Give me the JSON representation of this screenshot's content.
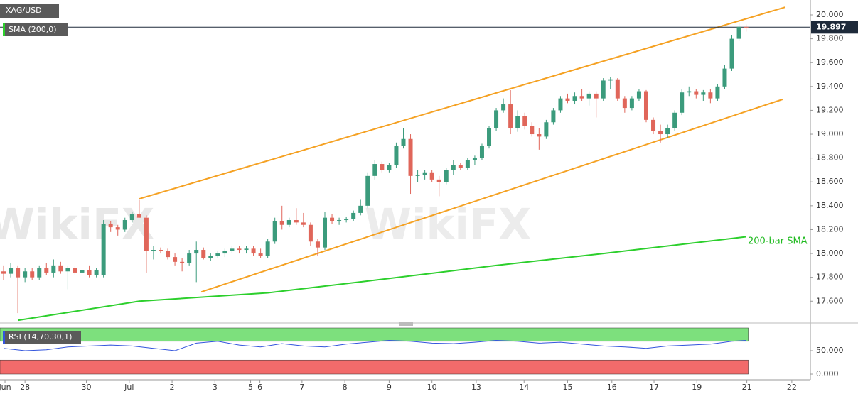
{
  "chart_data": {
    "type": "candlestick",
    "symbol": "XAG/USD",
    "indicator": "SMA (200,0)",
    "annotation": "200-bar SMA",
    "watermark": "WikiFX",
    "up_color": "#3b9b7c",
    "down_color": "#e0665a",
    "sma_color": "#2ccf2c",
    "trend_color": "#f5a122",
    "rsi_color": "#3355dd",
    "xlim": [
      -0.5,
      113
    ],
    "ylim": [
      17.435,
      20.125
    ],
    "yticks": [
      {
        "value": 20.0,
        "label": "20.000"
      },
      {
        "value": 19.8,
        "label": "19.800"
      },
      {
        "value": 19.6,
        "label": "19.600"
      },
      {
        "value": 19.4,
        "label": "19.400"
      },
      {
        "value": 19.2,
        "label": "19.200"
      },
      {
        "value": 19.0,
        "label": "19.000"
      },
      {
        "value": 18.8,
        "label": "18.800"
      },
      {
        "value": 18.6,
        "label": "18.600"
      },
      {
        "value": 18.4,
        "label": "18.400"
      },
      {
        "value": 18.2,
        "label": "18.200"
      },
      {
        "value": 18.0,
        "label": "18.000"
      },
      {
        "value": 17.8,
        "label": "17.800"
      },
      {
        "value": 17.6,
        "label": "17.600"
      }
    ],
    "xticks": [
      {
        "value": 0.2,
        "label": "Jun"
      },
      {
        "value": 3,
        "label": "28"
      },
      {
        "value": 11.6,
        "label": "30"
      },
      {
        "value": 17.6,
        "label": "Jul"
      },
      {
        "value": 23.6,
        "label": "2"
      },
      {
        "value": 29.6,
        "label": "3"
      },
      {
        "value": 34.6,
        "label": "5"
      },
      {
        "value": 35.9,
        "label": "6"
      },
      {
        "value": 41.8,
        "label": "7"
      },
      {
        "value": 47.8,
        "label": "8"
      },
      {
        "value": 54,
        "label": "9"
      },
      {
        "value": 60,
        "label": "10"
      },
      {
        "value": 66.2,
        "label": "13"
      },
      {
        "value": 72.9,
        "label": "14"
      },
      {
        "value": 79,
        "label": "15"
      },
      {
        "value": 85.2,
        "label": "16"
      },
      {
        "value": 91.1,
        "label": "17"
      },
      {
        "value": 97.1,
        "label": "19"
      },
      {
        "value": 104.1,
        "label": "21"
      },
      {
        "value": 110.4,
        "label": "22"
      }
    ],
    "last": {
      "value": 19.897,
      "label": "19.897"
    },
    "x": [
      0,
      1,
      2,
      3,
      4,
      5,
      6,
      7,
      8,
      9,
      10,
      11,
      12,
      13,
      14,
      15,
      16,
      17,
      18,
      19,
      20,
      21,
      22,
      23,
      24,
      25,
      26,
      27,
      28,
      29,
      30,
      31,
      32,
      33,
      34,
      35,
      36,
      37,
      38,
      39,
      40,
      41,
      42,
      43,
      44,
      45,
      46,
      47,
      48,
      49,
      50,
      51,
      52,
      53,
      54,
      55,
      56,
      57,
      58,
      59,
      60,
      61,
      62,
      63,
      64,
      65,
      66,
      67,
      68,
      69,
      70,
      71,
      72,
      73,
      74,
      75,
      76,
      77,
      78,
      79,
      80,
      81,
      82,
      83,
      84,
      85,
      86,
      87,
      88,
      89,
      90,
      91,
      92,
      93,
      94,
      95,
      96,
      97,
      98,
      99,
      100,
      101,
      102,
      103,
      104
    ],
    "candles": [
      [
        17.85,
        17.9,
        17.78,
        17.83
      ],
      [
        17.83,
        17.92,
        17.8,
        17.88
      ],
      [
        17.88,
        17.9,
        17.5,
        17.8
      ],
      [
        17.8,
        17.88,
        17.76,
        17.85
      ],
      [
        17.85,
        17.88,
        17.78,
        17.8
      ],
      [
        17.8,
        17.9,
        17.78,
        17.88
      ],
      [
        17.88,
        17.92,
        17.82,
        17.84
      ],
      [
        17.84,
        17.95,
        17.8,
        17.9
      ],
      [
        17.9,
        17.93,
        17.83,
        17.85
      ],
      [
        17.85,
        17.9,
        17.7,
        17.88
      ],
      [
        17.88,
        17.9,
        17.82,
        17.84
      ],
      [
        17.84,
        17.9,
        17.8,
        17.86
      ],
      [
        17.86,
        17.9,
        17.8,
        17.82
      ],
      [
        17.82,
        17.88,
        17.8,
        17.86
      ],
      [
        17.82,
        18.28,
        17.8,
        18.25
      ],
      [
        18.25,
        18.27,
        18.18,
        18.22
      ],
      [
        18.22,
        18.24,
        18.15,
        18.2
      ],
      [
        18.2,
        18.3,
        18.18,
        18.28
      ],
      [
        18.28,
        18.35,
        18.26,
        18.33
      ],
      [
        18.33,
        18.45,
        18.3,
        18.3
      ],
      [
        18.3,
        18.32,
        17.84,
        18.02
      ],
      [
        18.02,
        18.06,
        17.95,
        18.03
      ],
      [
        18.03,
        18.05,
        18.0,
        18.02
      ],
      [
        18.02,
        18.04,
        17.95,
        17.97
      ],
      [
        17.97,
        18.0,
        17.9,
        17.93
      ],
      [
        17.93,
        17.96,
        17.85,
        17.92
      ],
      [
        17.92,
        18.03,
        17.9,
        18.0
      ],
      [
        18.0,
        18.1,
        17.76,
        18.03
      ],
      [
        18.03,
        18.05,
        17.95,
        17.96
      ],
      [
        17.96,
        18.0,
        17.94,
        17.98
      ],
      [
        17.98,
        18.02,
        17.96,
        18.0
      ],
      [
        18.0,
        18.04,
        17.97,
        18.02
      ],
      [
        18.02,
        18.06,
        18.0,
        18.04
      ],
      [
        18.04,
        18.06,
        18.0,
        18.03
      ],
      [
        18.03,
        18.06,
        18.0,
        18.04
      ],
      [
        18.04,
        18.06,
        17.98,
        18.0
      ],
      [
        18.0,
        18.04,
        17.96,
        17.98
      ],
      [
        17.98,
        18.12,
        17.96,
        18.1
      ],
      [
        18.1,
        18.3,
        18.08,
        18.27
      ],
      [
        18.27,
        18.4,
        18.2,
        18.24
      ],
      [
        18.24,
        18.3,
        18.22,
        18.28
      ],
      [
        18.28,
        18.38,
        18.24,
        18.26
      ],
      [
        18.26,
        18.34,
        18.22,
        18.24
      ],
      [
        18.24,
        18.26,
        18.06,
        18.1
      ],
      [
        18.1,
        18.12,
        17.98,
        18.05
      ],
      [
        18.05,
        18.35,
        18.03,
        18.3
      ],
      [
        18.3,
        18.33,
        18.25,
        18.27
      ],
      [
        18.27,
        18.3,
        18.24,
        18.28
      ],
      [
        18.28,
        18.31,
        18.26,
        18.29
      ],
      [
        18.29,
        18.36,
        18.27,
        18.34
      ],
      [
        18.34,
        18.45,
        18.32,
        18.4
      ],
      [
        18.4,
        18.68,
        18.38,
        18.65
      ],
      [
        18.65,
        18.78,
        18.62,
        18.75
      ],
      [
        18.75,
        18.77,
        18.68,
        18.7
      ],
      [
        18.7,
        18.76,
        18.68,
        18.74
      ],
      [
        18.74,
        18.93,
        18.72,
        18.9
      ],
      [
        18.9,
        19.05,
        18.88,
        18.96
      ],
      [
        18.96,
        19.0,
        18.5,
        18.65
      ],
      [
        18.65,
        18.7,
        18.6,
        18.66
      ],
      [
        18.66,
        18.7,
        18.62,
        18.68
      ],
      [
        18.68,
        18.7,
        18.6,
        18.62
      ],
      [
        18.62,
        18.65,
        18.48,
        18.6
      ],
      [
        18.6,
        18.72,
        18.58,
        18.7
      ],
      [
        18.7,
        18.78,
        18.66,
        18.74
      ],
      [
        18.74,
        18.76,
        18.7,
        18.72
      ],
      [
        18.72,
        18.8,
        18.7,
        18.78
      ],
      [
        18.78,
        18.82,
        18.74,
        18.8
      ],
      [
        18.8,
        18.92,
        18.78,
        18.9
      ],
      [
        18.9,
        19.07,
        18.88,
        19.05
      ],
      [
        19.05,
        19.22,
        19.03,
        19.2
      ],
      [
        19.2,
        19.3,
        19.18,
        19.25
      ],
      [
        19.25,
        19.37,
        19.0,
        19.05
      ],
      [
        19.05,
        19.2,
        19.02,
        19.15
      ],
      [
        19.15,
        19.18,
        19.04,
        19.07
      ],
      [
        19.07,
        19.1,
        18.98,
        19.0
      ],
      [
        19.0,
        19.05,
        18.87,
        18.98
      ],
      [
        18.98,
        19.12,
        18.96,
        19.1
      ],
      [
        19.1,
        19.22,
        19.08,
        19.2
      ],
      [
        19.2,
        19.32,
        19.18,
        19.3
      ],
      [
        19.3,
        19.34,
        19.26,
        19.28
      ],
      [
        19.28,
        19.35,
        19.25,
        19.32
      ],
      [
        19.32,
        19.38,
        19.28,
        19.3
      ],
      [
        19.3,
        19.36,
        19.24,
        19.34
      ],
      [
        19.34,
        19.36,
        19.14,
        19.3
      ],
      [
        19.3,
        19.47,
        19.28,
        19.45
      ],
      [
        19.45,
        19.48,
        19.38,
        19.46
      ],
      [
        19.46,
        19.47,
        19.28,
        19.3
      ],
      [
        19.3,
        19.32,
        19.18,
        19.22
      ],
      [
        19.22,
        19.32,
        19.2,
        19.3
      ],
      [
        19.3,
        19.38,
        19.28,
        19.36
      ],
      [
        19.36,
        19.37,
        19.1,
        19.12
      ],
      [
        19.12,
        19.14,
        19.0,
        19.03
      ],
      [
        19.03,
        19.08,
        18.93,
        19.0
      ],
      [
        19.0,
        19.08,
        18.97,
        19.05
      ],
      [
        19.05,
        19.2,
        19.03,
        19.18
      ],
      [
        19.18,
        19.38,
        19.16,
        19.35
      ],
      [
        19.35,
        19.4,
        19.32,
        19.36
      ],
      [
        19.36,
        19.38,
        19.3,
        19.33
      ],
      [
        19.33,
        19.37,
        19.28,
        19.35
      ],
      [
        19.35,
        19.38,
        19.26,
        19.3
      ],
      [
        19.3,
        19.42,
        19.28,
        19.4
      ],
      [
        19.4,
        19.58,
        19.38,
        19.55
      ],
      [
        19.55,
        19.83,
        19.53,
        19.8
      ],
      [
        19.8,
        19.93,
        19.78,
        19.9
      ],
      [
        19.9,
        19.92,
        19.86,
        19.897
      ]
    ],
    "sma": {
      "x": [
        2,
        19,
        37,
        54,
        69,
        84,
        104
      ],
      "values": [
        17.44,
        17.6,
        17.67,
        17.79,
        17.9,
        18.0,
        18.14
      ]
    },
    "trendlines": [
      {
        "x": [
          19,
          109.5
        ],
        "values": [
          18.458,
          20.065
        ]
      },
      {
        "x": [
          27.7,
          109.1
        ],
        "values": [
          17.678,
          19.292
        ]
      }
    ],
    "rsi": {
      "title": "RSI (14,70,30,1)",
      "levels": [
        30,
        70
      ],
      "ylim": [
        -4.5,
        101.5
      ],
      "yticks": [
        {
          "value": 50,
          "label": "50.000"
        },
        {
          "value": 0,
          "label": "0.000"
        }
      ],
      "x": [
        0,
        3,
        6,
        9,
        12,
        15,
        18,
        21,
        24,
        27,
        30,
        33,
        36,
        39,
        42,
        45,
        48,
        51,
        54,
        57,
        60,
        63,
        66,
        69,
        72,
        75,
        78,
        81,
        84,
        87,
        90,
        93,
        96,
        99,
        102,
        104
      ],
      "values": [
        55,
        50,
        52,
        58,
        60,
        62,
        60,
        55,
        50,
        66,
        70,
        62,
        58,
        65,
        60,
        58,
        64,
        68,
        72,
        70,
        66,
        65,
        68,
        72,
        70,
        66,
        68,
        64,
        60,
        58,
        55,
        60,
        62,
        64,
        70,
        72
      ]
    }
  }
}
